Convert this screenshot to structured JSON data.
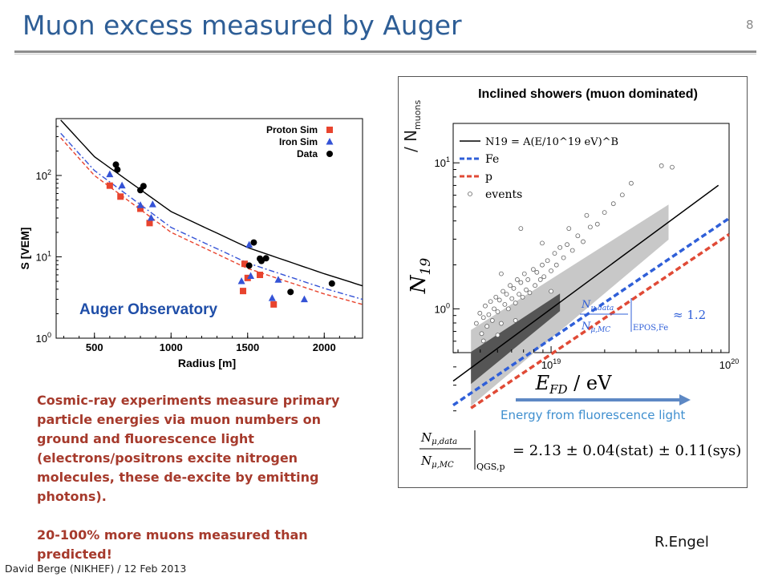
{
  "slide": {
    "title": "Muon excess measured by Auger",
    "number": "8",
    "footer": "David Berge (NIKHEF) / 12 Feb 2013",
    "credit": "R.Engel",
    "body_paragraphs": [
      "Cosmic-ray experiments measure primary particle energies via muon numbers on ground and fluorescence light (electrons/positrons excite nitrogen molecules, these de-excite by emitting photons).",
      "20-100% more muons measured than predicted!"
    ],
    "energy_caption": "Energy from fluorescence light",
    "nmuons_label_prefix": "/ N",
    "nmuons_label_sub": "muons"
  },
  "chart_data": [
    {
      "type": "scatter",
      "title": "",
      "xlabel": "Radius [m]",
      "ylabel": "S [VEM]",
      "xlim": [
        250,
        2250
      ],
      "ylim_log": [
        1,
        500
      ],
      "x_ticks": [
        "500",
        "1000",
        "1500",
        "2000"
      ],
      "y_ticks": [
        "10^0",
        "10^1",
        "10^2"
      ],
      "annotation": "Auger Observatory",
      "legend_position": "top-right",
      "series": [
        {
          "name": "Proton Sim",
          "marker": "square",
          "color": "#e8442e",
          "points": [
            [
              600,
              75
            ],
            [
              670,
              55
            ],
            [
              800,
              39
            ],
            [
              860,
              26
            ],
            [
              1480,
              8.2
            ],
            [
              1470,
              3.8
            ],
            [
              1500,
              5.5
            ],
            [
              1580,
              6
            ],
            [
              1670,
              2.6
            ]
          ]
        },
        {
          "name": "Iron Sim",
          "marker": "triangle",
          "color": "#3553d6",
          "points": [
            [
              600,
              103
            ],
            [
              680,
              75
            ],
            [
              800,
              43
            ],
            [
              880,
              44
            ],
            [
              870,
              30
            ],
            [
              1460,
              5
            ],
            [
              1510,
              14
            ],
            [
              1520,
              5.8
            ],
            [
              1700,
              5.2
            ],
            [
              1660,
              3.1
            ],
            [
              1870,
              3
            ]
          ]
        },
        {
          "name": "Data",
          "marker": "circle",
          "color": "#000000",
          "points": [
            [
              640,
              136
            ],
            [
              650,
              118
            ],
            [
              800,
              66
            ],
            [
              820,
              74
            ],
            [
              1510,
              7.8
            ],
            [
              1540,
              15
            ],
            [
              1580,
              9.5
            ],
            [
              1590,
              8.9
            ],
            [
              1620,
              9.6
            ],
            [
              1780,
              3.7
            ],
            [
              2050,
              4.7
            ]
          ]
        }
      ],
      "fit_lines": [
        {
          "name": "data fit",
          "style": "solid",
          "color": "#000000",
          "curve": [
            [
              280,
              480
            ],
            [
              500,
              170
            ],
            [
              1000,
              36
            ],
            [
              1500,
              13
            ],
            [
              2000,
              6.2
            ],
            [
              2250,
              4.4
            ]
          ]
        },
        {
          "name": "iron fit",
          "style": "dashdot",
          "color": "#3553d6",
          "curve": [
            [
              280,
              330
            ],
            [
              500,
              115
            ],
            [
              1000,
              23
            ],
            [
              1500,
              8.4
            ],
            [
              2000,
              4.1
            ],
            [
              2250,
              3.0
            ]
          ]
        },
        {
          "name": "proton fit",
          "style": "dashed",
          "color": "#e8442e",
          "curve": [
            [
              280,
              290
            ],
            [
              500,
              100
            ],
            [
              1000,
              20
            ],
            [
              1500,
              7.2
            ],
            [
              2000,
              3.5
            ],
            [
              2250,
              2.6
            ]
          ]
        }
      ]
    },
    {
      "type": "scatter",
      "title": "Inclined showers (muon dominated)",
      "xlabel": "E_FD / eV",
      "ylabel": "N_19",
      "xlim_log10": [
        18.45,
        20.0
      ],
      "ylim_log10": [
        -0.3,
        1.27
      ],
      "x_ticks": [
        "10^19",
        "10^20"
      ],
      "y_ticks": [
        "10^0",
        "10^1"
      ],
      "legend": [
        "N19 = A(E/10^19 eV)^B",
        "Fe",
        "p",
        "events"
      ],
      "ratio_annotation": "N_μ,data / N_μ,MC |EPOS,Fe ≈ 1.2",
      "result": "N_μ,data / N_μ,MC |QGS,p = 2.13 ± 0.04(stat) ± 0.11(sys)",
      "fit": {
        "log10E_at_unit": 19.0,
        "slope": 0.9
      },
      "lines": [
        {
          "name": "Fe",
          "color": "#2f5fd8",
          "points_log": [
            [
              18.45,
              -0.66
            ],
            [
              20.0,
              0.62
            ]
          ]
        },
        {
          "name": "p",
          "color": "#e04a36",
          "points_log": [
            [
              18.55,
              -0.68
            ],
            [
              20.0,
              0.51
            ]
          ]
        }
      ],
      "events_log": [
        [
          18.58,
          -0.1
        ],
        [
          18.6,
          -0.03
        ],
        [
          18.61,
          -0.17
        ],
        [
          18.62,
          -0.06
        ],
        [
          18.63,
          0.02
        ],
        [
          18.64,
          -0.12
        ],
        [
          18.65,
          -0.04
        ],
        [
          18.66,
          0.05
        ],
        [
          18.67,
          -0.08
        ],
        [
          18.68,
          0.0
        ],
        [
          18.69,
          0.08
        ],
        [
          18.7,
          -0.02
        ],
        [
          18.71,
          0.06
        ],
        [
          18.72,
          -0.1
        ],
        [
          18.73,
          0.12
        ],
        [
          18.74,
          0.03
        ],
        [
          18.75,
          0.1
        ],
        [
          18.76,
          0.0
        ],
        [
          18.77,
          0.16
        ],
        [
          18.78,
          0.07
        ],
        [
          18.79,
          0.14
        ],
        [
          18.8,
          0.04
        ],
        [
          18.81,
          0.2
        ],
        [
          18.82,
          0.1
        ],
        [
          18.83,
          0.18
        ],
        [
          18.84,
          0.08
        ],
        [
          18.85,
          0.24
        ],
        [
          18.86,
          0.13
        ],
        [
          18.87,
          0.2
        ],
        [
          18.88,
          0.11
        ],
        [
          18.9,
          0.27
        ],
        [
          18.91,
          0.16
        ],
        [
          18.92,
          0.25
        ],
        [
          18.94,
          0.2
        ],
        [
          18.95,
          0.3
        ],
        [
          18.96,
          0.22
        ],
        [
          18.98,
          0.33
        ],
        [
          19.0,
          0.26
        ],
        [
          19.02,
          0.38
        ],
        [
          19.03,
          0.3
        ],
        [
          19.05,
          0.42
        ],
        [
          19.07,
          0.35
        ],
        [
          19.09,
          0.44
        ],
        [
          19.12,
          0.4
        ],
        [
          19.15,
          0.5
        ],
        [
          19.18,
          0.46
        ],
        [
          19.22,
          0.56
        ],
        [
          19.26,
          0.58
        ],
        [
          19.3,
          0.66
        ],
        [
          19.35,
          0.72
        ],
        [
          19.4,
          0.78
        ],
        [
          19.45,
          0.86
        ],
        [
          19.62,
          0.98
        ],
        [
          19.68,
          0.97
        ],
        [
          18.83,
          0.55
        ],
        [
          18.95,
          0.45
        ],
        [
          18.62,
          -0.22
        ],
        [
          18.7,
          -0.18
        ],
        [
          18.8,
          -0.08
        ],
        [
          19.1,
          0.55
        ],
        [
          19.2,
          0.64
        ],
        [
          18.72,
          0.24
        ],
        [
          19.0,
          0.12
        ]
      ]
    }
  ]
}
